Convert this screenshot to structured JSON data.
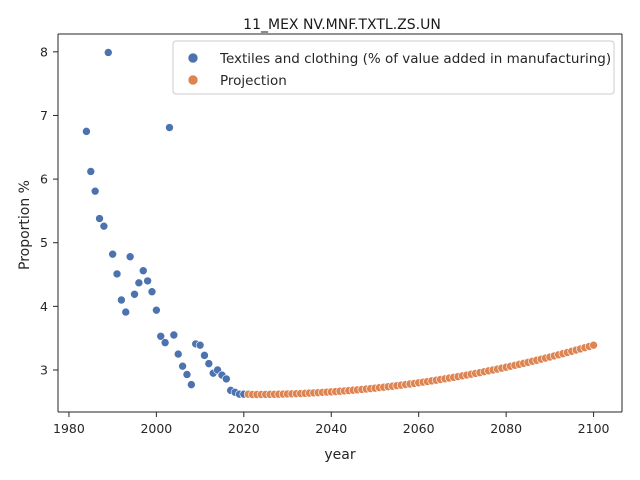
{
  "chart_data": {
    "type": "scatter",
    "title": "11_MEX NV.MNF.TXTL.ZS.UN",
    "xlabel": "year",
    "ylabel": "Proportion %",
    "xlim": [
      1977.5,
      2106.5
    ],
    "ylim": [
      2.34,
      8.28
    ],
    "xticks": [
      1980,
      2000,
      2020,
      2040,
      2060,
      2080,
      2100
    ],
    "yticks": [
      3,
      4,
      5,
      6,
      7,
      8
    ],
    "legend_position": "top-right",
    "grid": false,
    "series": [
      {
        "name": "Textiles and clothing (% of value added in manufacturing)",
        "color": "#4c72b0",
        "x": [
          1984,
          1985,
          1986,
          1987,
          1988,
          1989,
          1990,
          1991,
          1992,
          1993,
          1994,
          1995,
          1996,
          1997,
          1998,
          1999,
          2000,
          2001,
          2002,
          2003,
          2004,
          2005,
          2006,
          2007,
          2008,
          2009,
          2010,
          2011,
          2012,
          2013,
          2014,
          2015,
          2016,
          2017,
          2018,
          2019,
          2020
        ],
        "y": [
          6.75,
          6.12,
          5.81,
          5.38,
          5.26,
          7.99,
          4.82,
          4.51,
          4.1,
          3.91,
          4.78,
          4.19,
          4.37,
          4.56,
          4.4,
          4.23,
          3.94,
          3.53,
          3.43,
          6.81,
          3.55,
          3.25,
          3.06,
          2.93,
          2.77,
          3.41,
          3.39,
          3.23,
          3.1,
          2.95,
          3.0,
          2.92,
          2.86,
          2.68,
          2.65,
          2.62,
          2.62
        ]
      },
      {
        "name": "Projection",
        "color": "#dd8452",
        "x_start": 2021,
        "x_end": 2100,
        "y_start": 2.62,
        "y_min_year": 2022,
        "y_min": 2.615,
        "y_end": 3.39
      }
    ]
  }
}
